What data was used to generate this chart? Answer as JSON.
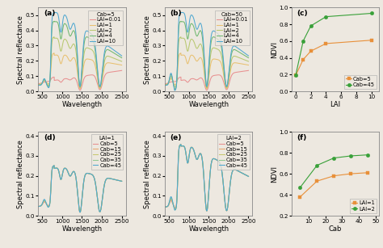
{
  "panel_a": {
    "label": "(a)",
    "legend_title": "Cab=5",
    "lai_values": [
      0.01,
      1,
      2,
      4,
      10
    ],
    "colors": [
      "#e89090",
      "#e8c070",
      "#b8c870",
      "#70b870",
      "#50a8d0"
    ],
    "ylim": [
      0.0,
      0.55
    ],
    "yticks": [
      0.0,
      0.1,
      0.2,
      0.3,
      0.4,
      0.5
    ],
    "ylabel": "Spectral reflectance",
    "xlabel": "Wavelength"
  },
  "panel_b": {
    "label": "(b)",
    "legend_title": "Cab=50",
    "lai_values": [
      0.01,
      1,
      2,
      4,
      10
    ],
    "colors": [
      "#e89090",
      "#e8c070",
      "#b8c870",
      "#70b870",
      "#50a8d0"
    ],
    "ylim": [
      0.0,
      0.55
    ],
    "yticks": [
      0.0,
      0.1,
      0.2,
      0.3,
      0.4,
      0.5
    ],
    "ylabel": "Spectral reflectance",
    "xlabel": "Wavelength"
  },
  "panel_c": {
    "label": "(c)",
    "xlabel": "LAI",
    "ylabel": "NDVI",
    "xlim": [
      -0.5,
      11
    ],
    "ylim": [
      0.0,
      1.0
    ],
    "xticks": [
      0,
      2,
      4,
      6,
      8,
      10
    ],
    "yticks": [
      0.0,
      0.2,
      0.4,
      0.6,
      0.8,
      1.0
    ],
    "series": [
      {
        "label": "Cab=5",
        "x": [
          0.01,
          1,
          2,
          4,
          10
        ],
        "y": [
          0.19,
          0.38,
          0.48,
          0.57,
          0.61
        ],
        "color": "#e8903a",
        "marker": "s"
      },
      {
        "label": "Cab=45",
        "x": [
          0.01,
          1,
          2,
          4,
          10
        ],
        "y": [
          0.19,
          0.6,
          0.78,
          0.89,
          0.93
        ],
        "color": "#38a038",
        "marker": "o"
      }
    ]
  },
  "panel_d": {
    "label": "(d)",
    "legend_title": "LAI=1",
    "cab_values": [
      5,
      15,
      25,
      35,
      45
    ],
    "colors": [
      "#e89090",
      "#e8a870",
      "#c8c870",
      "#90c890",
      "#50a8d0"
    ],
    "ylim": [
      0.0,
      0.42
    ],
    "yticks": [
      0.0,
      0.1,
      0.2,
      0.3,
      0.4
    ],
    "ylabel": "Spectral reflectance",
    "xlabel": "Wavelength"
  },
  "panel_e": {
    "label": "(e)",
    "legend_title": "LAI=2",
    "cab_values": [
      5,
      15,
      25,
      35,
      45
    ],
    "colors": [
      "#e89090",
      "#e8a870",
      "#c8c870",
      "#90c890",
      "#50a8d0"
    ],
    "ylim": [
      0.0,
      0.42
    ],
    "yticks": [
      0.0,
      0.1,
      0.2,
      0.3,
      0.4
    ],
    "ylabel": "Spectral reflectance",
    "xlabel": "Wavelength"
  },
  "panel_f": {
    "label": "(f)",
    "xlabel": "Cab",
    "ylabel": "NDVI",
    "xlim": [
      0,
      52
    ],
    "ylim": [
      0.2,
      1.0
    ],
    "xticks": [
      10,
      20,
      30,
      40,
      50
    ],
    "yticks": [
      0.2,
      0.4,
      0.6,
      0.8,
      1.0
    ],
    "series": [
      {
        "label": "LAI=1",
        "x": [
          5,
          15,
          25,
          35,
          45
        ],
        "y": [
          0.38,
          0.53,
          0.58,
          0.6,
          0.61
        ],
        "color": "#e8903a",
        "marker": "s"
      },
      {
        "label": "LAI=2",
        "x": [
          5,
          15,
          25,
          35,
          45
        ],
        "y": [
          0.47,
          0.68,
          0.75,
          0.77,
          0.78
        ],
        "color": "#38a038",
        "marker": "o"
      }
    ]
  },
  "background_color": "#ede8e0"
}
